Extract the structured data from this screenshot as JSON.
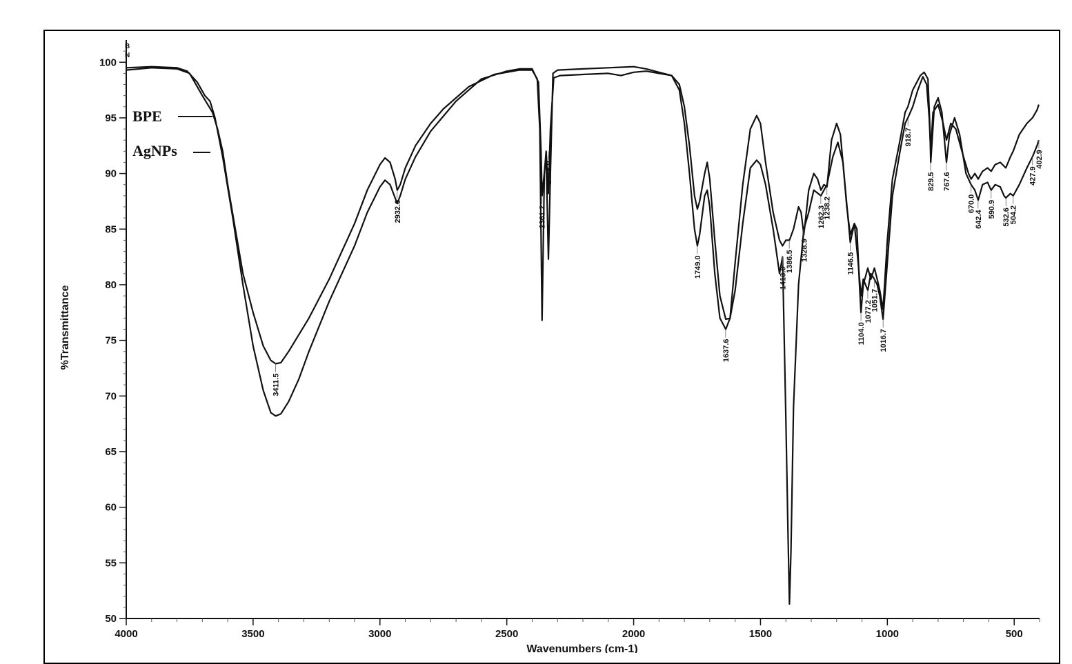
{
  "chart_data": {
    "type": "line",
    "xlabel": "Wavenumbers (cm-1)",
    "ylabel": "%Transmittance",
    "xlim": [
      4000,
      400
    ],
    "ylim": [
      50,
      102
    ],
    "x_ticks": [
      4000,
      3500,
      3000,
      2500,
      2000,
      1500,
      1000,
      500
    ],
    "y_ticks": [
      50,
      55,
      60,
      65,
      70,
      75,
      80,
      85,
      90,
      95,
      100
    ],
    "corner_labels": [
      "B",
      "N"
    ],
    "grid": false,
    "legend_placement": "top-left",
    "legend": [
      "BPE",
      "AgNPs"
    ],
    "series": [
      {
        "name": "BPE",
        "color": "#111111",
        "points": [
          [
            4000,
            99.3
          ],
          [
            3900,
            99.5
          ],
          [
            3800,
            99.4
          ],
          [
            3750,
            99.0
          ],
          [
            3700,
            97.0
          ],
          [
            3660,
            95.5
          ],
          [
            3640,
            94.0
          ],
          [
            3620,
            92.0
          ],
          [
            3600,
            89.0
          ],
          [
            3570,
            85.0
          ],
          [
            3540,
            81.0
          ],
          [
            3500,
            77.5
          ],
          [
            3460,
            74.5
          ],
          [
            3430,
            73.2
          ],
          [
            3411,
            72.9
          ],
          [
            3390,
            73.0
          ],
          [
            3360,
            74.0
          ],
          [
            3320,
            75.5
          ],
          [
            3280,
            77.0
          ],
          [
            3200,
            80.5
          ],
          [
            3100,
            85.5
          ],
          [
            3050,
            88.5
          ],
          [
            3000,
            90.8
          ],
          [
            2980,
            91.4
          ],
          [
            2960,
            91.0
          ],
          [
            2940,
            89.5
          ],
          [
            2932,
            88.5
          ],
          [
            2920,
            89.0
          ],
          [
            2900,
            90.5
          ],
          [
            2860,
            92.5
          ],
          [
            2800,
            94.5
          ],
          [
            2750,
            95.8
          ],
          [
            2650,
            97.8
          ],
          [
            2550,
            98.9
          ],
          [
            2450,
            99.3
          ],
          [
            2400,
            99.3
          ],
          [
            2380,
            98.5
          ],
          [
            2370,
            94.0
          ],
          [
            2361,
            76.8
          ],
          [
            2352,
            90.0
          ],
          [
            2345,
            92.0
          ],
          [
            2336,
            88.2
          ],
          [
            2328,
            94.0
          ],
          [
            2315,
            98.6
          ],
          [
            2290,
            98.8
          ],
          [
            2200,
            98.9
          ],
          [
            2100,
            99.0
          ],
          [
            2050,
            98.8
          ],
          [
            2000,
            99.1
          ],
          [
            1950,
            99.2
          ],
          [
            1900,
            99.0
          ],
          [
            1850,
            98.8
          ],
          [
            1820,
            98.0
          ],
          [
            1800,
            96.0
          ],
          [
            1780,
            92.5
          ],
          [
            1760,
            88.0
          ],
          [
            1749,
            86.8
          ],
          [
            1740,
            87.5
          ],
          [
            1720,
            90.0
          ],
          [
            1710,
            91.0
          ],
          [
            1700,
            89.5
          ],
          [
            1680,
            84.0
          ],
          [
            1660,
            79.0
          ],
          [
            1637,
            76.9
          ],
          [
            1620,
            77.0
          ],
          [
            1600,
            79.5
          ],
          [
            1570,
            85.5
          ],
          [
            1540,
            90.5
          ],
          [
            1515,
            91.2
          ],
          [
            1500,
            90.8
          ],
          [
            1480,
            89.0
          ],
          [
            1450,
            85.0
          ],
          [
            1425,
            81.0
          ],
          [
            1413,
            82.5
          ],
          [
            1400,
            68.0
          ],
          [
            1392,
            58.0
          ],
          [
            1386,
            51.3
          ],
          [
            1380,
            56.0
          ],
          [
            1370,
            69.0
          ],
          [
            1350,
            80.0
          ],
          [
            1329,
            85.0
          ],
          [
            1310,
            86.5
          ],
          [
            1290,
            88.5
          ],
          [
            1262,
            88.0
          ],
          [
            1238,
            89.0
          ],
          [
            1215,
            91.5
          ],
          [
            1195,
            92.8
          ],
          [
            1175,
            91.0
          ],
          [
            1160,
            87.0
          ],
          [
            1146,
            84.5
          ],
          [
            1130,
            85.5
          ],
          [
            1115,
            82.0
          ],
          [
            1104,
            79.0
          ],
          [
            1095,
            80.5
          ],
          [
            1077,
            79.5
          ],
          [
            1065,
            81.0
          ],
          [
            1051,
            80.5
          ],
          [
            1040,
            80.0
          ],
          [
            1030,
            79.0
          ],
          [
            1017,
            76.9
          ],
          [
            1000,
            82.0
          ],
          [
            980,
            88.0
          ],
          [
            950,
            92.0
          ],
          [
            930,
            94.5
          ],
          [
            919,
            95.0
          ],
          [
            900,
            96.0
          ],
          [
            880,
            97.5
          ],
          [
            860,
            98.7
          ],
          [
            845,
            98.0
          ],
          [
            835,
            95.0
          ],
          [
            829,
            92.0
          ],
          [
            820,
            95.5
          ],
          [
            800,
            96.2
          ],
          [
            780,
            94.5
          ],
          [
            767,
            93.0
          ],
          [
            750,
            94.5
          ],
          [
            730,
            94.0
          ],
          [
            700,
            91.5
          ],
          [
            680,
            90.0
          ],
          [
            670,
            89.5
          ],
          [
            655,
            90.0
          ],
          [
            642,
            89.5
          ],
          [
            625,
            90.2
          ],
          [
            605,
            90.5
          ],
          [
            591,
            90.2
          ],
          [
            575,
            90.8
          ],
          [
            555,
            91.0
          ],
          [
            533,
            90.5
          ],
          [
            515,
            91.5
          ],
          [
            504,
            92.0
          ],
          [
            480,
            93.5
          ],
          [
            450,
            94.5
          ],
          [
            428,
            95.0
          ],
          [
            410,
            95.7
          ],
          [
            403,
            96.2
          ]
        ]
      },
      {
        "name": "AgNPs",
        "color": "#111111",
        "points": [
          [
            4000,
            99.5
          ],
          [
            3900,
            99.6
          ],
          [
            3800,
            99.5
          ],
          [
            3760,
            99.2
          ],
          [
            3720,
            98.2
          ],
          [
            3690,
            97.0
          ],
          [
            3670,
            96.5
          ],
          [
            3650,
            95.0
          ],
          [
            3620,
            91.5
          ],
          [
            3580,
            86.0
          ],
          [
            3540,
            80.0
          ],
          [
            3500,
            74.5
          ],
          [
            3460,
            70.5
          ],
          [
            3430,
            68.5
          ],
          [
            3411,
            68.2
          ],
          [
            3390,
            68.4
          ],
          [
            3360,
            69.5
          ],
          [
            3320,
            71.5
          ],
          [
            3280,
            74.0
          ],
          [
            3200,
            78.5
          ],
          [
            3100,
            83.5
          ],
          [
            3050,
            86.5
          ],
          [
            3000,
            88.8
          ],
          [
            2980,
            89.4
          ],
          [
            2960,
            89.0
          ],
          [
            2940,
            87.8
          ],
          [
            2932,
            87.3
          ],
          [
            2920,
            88.0
          ],
          [
            2900,
            89.5
          ],
          [
            2860,
            91.5
          ],
          [
            2800,
            93.8
          ],
          [
            2700,
            96.5
          ],
          [
            2600,
            98.5
          ],
          [
            2500,
            99.2
          ],
          [
            2450,
            99.4
          ],
          [
            2400,
            99.4
          ],
          [
            2375,
            98.2
          ],
          [
            2365,
            92.0
          ],
          [
            2361,
            88.0
          ],
          [
            2350,
            90.5
          ],
          [
            2345,
            91.5
          ],
          [
            2336,
            82.3
          ],
          [
            2328,
            90.0
          ],
          [
            2318,
            99.0
          ],
          [
            2300,
            99.3
          ],
          [
            2200,
            99.4
          ],
          [
            2100,
            99.5
          ],
          [
            2000,
            99.6
          ],
          [
            1950,
            99.4
          ],
          [
            1900,
            99.1
          ],
          [
            1850,
            98.8
          ],
          [
            1820,
            97.5
          ],
          [
            1800,
            94.5
          ],
          [
            1780,
            90.0
          ],
          [
            1760,
            85.0
          ],
          [
            1749,
            83.5
          ],
          [
            1740,
            84.5
          ],
          [
            1720,
            88.0
          ],
          [
            1710,
            88.5
          ],
          [
            1700,
            87.0
          ],
          [
            1680,
            81.0
          ],
          [
            1660,
            77.0
          ],
          [
            1637,
            76.0
          ],
          [
            1620,
            77.0
          ],
          [
            1600,
            82.0
          ],
          [
            1570,
            89.0
          ],
          [
            1540,
            94.0
          ],
          [
            1515,
            95.2
          ],
          [
            1500,
            94.5
          ],
          [
            1480,
            91.0
          ],
          [
            1450,
            86.5
          ],
          [
            1425,
            84.0
          ],
          [
            1413,
            83.5
          ],
          [
            1400,
            84.0
          ],
          [
            1386,
            84.0
          ],
          [
            1370,
            85.0
          ],
          [
            1350,
            87.0
          ],
          [
            1340,
            86.5
          ],
          [
            1329,
            84.5
          ],
          [
            1310,
            88.5
          ],
          [
            1290,
            90.0
          ],
          [
            1275,
            89.5
          ],
          [
            1262,
            88.5
          ],
          [
            1250,
            89.0
          ],
          [
            1238,
            88.8
          ],
          [
            1220,
            93.0
          ],
          [
            1200,
            94.5
          ],
          [
            1185,
            93.5
          ],
          [
            1165,
            88.5
          ],
          [
            1146,
            83.8
          ],
          [
            1130,
            85.5
          ],
          [
            1120,
            85.0
          ],
          [
            1110,
            80.0
          ],
          [
            1104,
            77.5
          ],
          [
            1095,
            80.0
          ],
          [
            1077,
            81.5
          ],
          [
            1065,
            80.5
          ],
          [
            1051,
            81.5
          ],
          [
            1040,
            80.5
          ],
          [
            1030,
            79.5
          ],
          [
            1017,
            77.8
          ],
          [
            1000,
            84.0
          ],
          [
            980,
            89.5
          ],
          [
            950,
            93.0
          ],
          [
            930,
            95.5
          ],
          [
            919,
            96.0
          ],
          [
            900,
            97.5
          ],
          [
            870,
            98.8
          ],
          [
            855,
            99.1
          ],
          [
            840,
            98.5
          ],
          [
            832,
            94.0
          ],
          [
            829,
            91.0
          ],
          [
            815,
            96.0
          ],
          [
            800,
            96.8
          ],
          [
            785,
            95.5
          ],
          [
            767,
            91.0
          ],
          [
            755,
            93.5
          ],
          [
            735,
            95.0
          ],
          [
            715,
            93.5
          ],
          [
            690,
            90.0
          ],
          [
            670,
            89.0
          ],
          [
            655,
            88.5
          ],
          [
            642,
            87.6
          ],
          [
            625,
            89.0
          ],
          [
            605,
            89.2
          ],
          [
            591,
            88.5
          ],
          [
            575,
            89.0
          ],
          [
            555,
            88.8
          ],
          [
            540,
            88.0
          ],
          [
            533,
            87.8
          ],
          [
            515,
            88.2
          ],
          [
            504,
            88.0
          ],
          [
            480,
            89.0
          ],
          [
            450,
            90.5
          ],
          [
            428,
            91.5
          ],
          [
            410,
            92.5
          ],
          [
            403,
            93.0
          ]
        ]
      }
    ],
    "peak_labels": [
      {
        "text": "3411.5",
        "x": 3411.5,
        "y": 72.9
      },
      {
        "text": "2932.0",
        "x": 2932.0,
        "y": 88.5
      },
      {
        "text": "2361.2",
        "x": 2361.2,
        "y": 88.0
      },
      {
        "text": "2336.0",
        "x": 2336.0,
        "y": 92.0
      },
      {
        "text": "1749.0",
        "x": 1749.0,
        "y": 83.5
      },
      {
        "text": "1637.6",
        "x": 1637.6,
        "y": 76.0
      },
      {
        "text": "1413.0",
        "x": 1413.0,
        "y": 82.5
      },
      {
        "text": "1386.5",
        "x": 1386.5,
        "y": 84.0
      },
      {
        "text": "1328.9",
        "x": 1328.9,
        "y": 85.0
      },
      {
        "text": "1262.3",
        "x": 1262.3,
        "y": 88.0
      },
      {
        "text": "1238.2",
        "x": 1238.2,
        "y": 88.8
      },
      {
        "text": "1146.5",
        "x": 1146.5,
        "y": 83.8
      },
      {
        "text": "1104.0",
        "x": 1104.0,
        "y": 77.5
      },
      {
        "text": "1077.2",
        "x": 1077.2,
        "y": 79.5
      },
      {
        "text": "1051.7",
        "x": 1051.7,
        "y": 80.5
      },
      {
        "text": "1016.7",
        "x": 1016.7,
        "y": 76.9
      },
      {
        "text": "918.7",
        "x": 918.7,
        "y": 95.0
      },
      {
        "text": "829.5",
        "x": 829.5,
        "y": 91.0
      },
      {
        "text": "767.6",
        "x": 767.6,
        "y": 91.0
      },
      {
        "text": "670.0",
        "x": 670.0,
        "y": 89.0
      },
      {
        "text": "642.4",
        "x": 642.4,
        "y": 87.6
      },
      {
        "text": "590.9",
        "x": 590.9,
        "y": 88.5
      },
      {
        "text": "532.6",
        "x": 532.6,
        "y": 87.8
      },
      {
        "text": "504.2",
        "x": 504.2,
        "y": 88.0
      },
      {
        "text": "427.9",
        "x": 427.9,
        "y": 91.5
      },
      {
        "text": "402.9",
        "x": 402.9,
        "y": 93.0
      }
    ]
  }
}
